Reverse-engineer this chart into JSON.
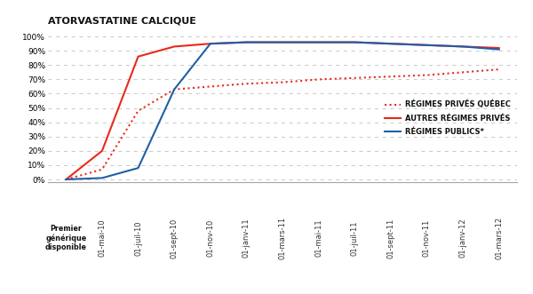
{
  "title": "ATORVASTATINE CALCIQUE",
  "xlabel_first": "Premier\ngénérique\ndisponible",
  "yticks": [
    0,
    10,
    20,
    30,
    40,
    50,
    60,
    70,
    80,
    90,
    100
  ],
  "xtick_labels": [
    "01-mai-10",
    "01-juil-10",
    "01-sept-10",
    "01-nov-10",
    "01-janv-11",
    "01-mars-11",
    "01-mai-11",
    "01-juil-11",
    "01-sept-11",
    "01-nov-11",
    "01-janv-12",
    "01-mars-12"
  ],
  "legend_labels": [
    "RÉGIMES PRIVÉS QUÉBEC",
    "AUTRES RÉGIMES PRIVÉS",
    "RÉGIMES PUBLICS*"
  ],
  "background_color": "#ffffff",
  "grid_color": "#c8c8c8",
  "xaxis_bg": "#d8d8d8",
  "privs_qc_x": [
    0,
    1,
    2,
    3,
    4,
    5,
    6,
    7,
    8,
    9,
    10,
    11,
    12
  ],
  "privs_qc_y": [
    0,
    7,
    48,
    63,
    65,
    67,
    68,
    70,
    71,
    72,
    73,
    75,
    77
  ],
  "privs_qc_color": "#e8291c",
  "autres_x": [
    0,
    1,
    2,
    3,
    4,
    5,
    6,
    7,
    8,
    9,
    10,
    11,
    12
  ],
  "autres_y": [
    0,
    20,
    86,
    93,
    95,
    96,
    96,
    96,
    96,
    95,
    94,
    93,
    92
  ],
  "autres_color": "#e8291c",
  "publics_x": [
    0,
    1,
    2,
    3,
    4,
    5,
    6,
    7,
    8,
    9,
    10,
    11,
    12
  ],
  "publics_y": [
    0,
    1,
    8,
    63,
    95,
    96,
    96,
    96,
    96,
    95,
    94,
    93,
    91
  ],
  "publics_color": "#1f5fa6",
  "linewidth": 1.5
}
